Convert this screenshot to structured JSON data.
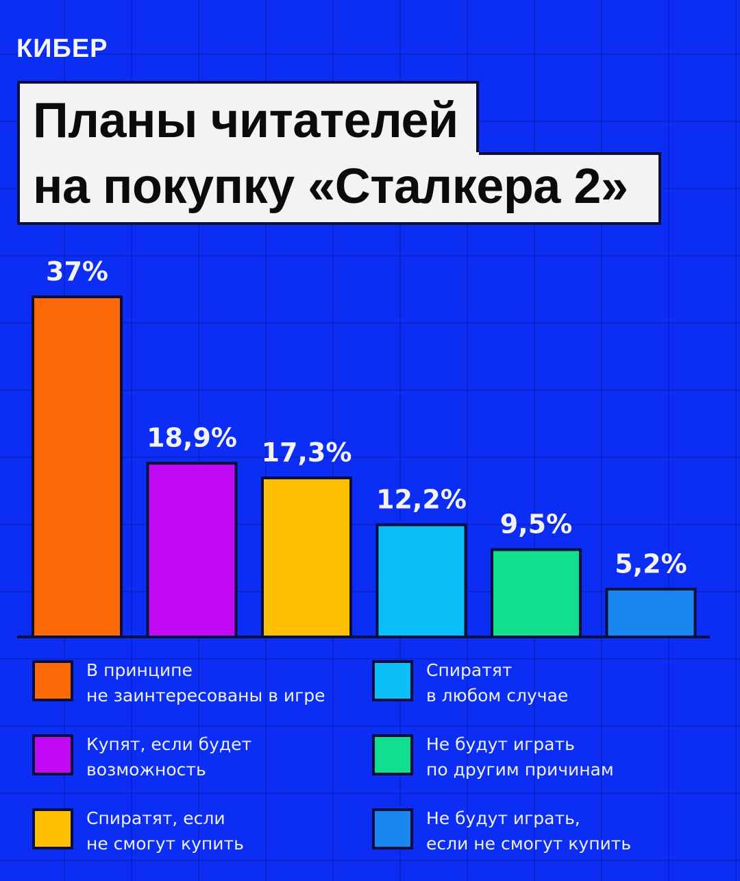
{
  "logo": "КИБЕР",
  "title": {
    "line1": "Планы читателей",
    "line2": "на покупку «Сталкера 2»"
  },
  "colors": {
    "background": "#0b2df4",
    "bar_outline": "#0a0f3a",
    "label": "#f2f2f2"
  },
  "chart_data": {
    "type": "bar",
    "title": "Планы читателей на покупку «Сталкера 2»",
    "xlabel": "",
    "ylabel": "",
    "ylim": [
      0,
      37
    ],
    "grid": false,
    "legend_position": "bottom",
    "categories": [
      "В принципе не заинтересованы в игре",
      "Купят, если будет возможность",
      "Спиратят, если не смогут купить",
      "Спиратят в любом случае",
      "Не будут играть по другим причинам",
      "Не будут играть, если не смогут купить"
    ],
    "values": [
      37,
      18.9,
      17.3,
      12.2,
      9.5,
      5.2
    ],
    "value_labels": [
      "37%",
      "18,9%",
      "17,3%",
      "12,2%",
      "9,5%",
      "5,2%"
    ],
    "bar_colors": [
      "#ff6a08",
      "#c209f6",
      "#ffc004",
      "#0dbff8",
      "#12df8e",
      "#1a86f0"
    ]
  },
  "legend": [
    {
      "line1": "В принципе",
      "line2": "не заинтересованы в игре",
      "color": "#ff6a08"
    },
    {
      "line1": "Купят, если будет",
      "line2": "возможность",
      "color": "#c209f6"
    },
    {
      "line1": "Спиратят, если",
      "line2": "не смогут купить",
      "color": "#ffc004"
    },
    {
      "line1": "Спиратят",
      "line2": "в любом случае",
      "color": "#0dbff8"
    },
    {
      "line1": "Не будут играть",
      "line2": "по другим причинам",
      "color": "#12df8e"
    },
    {
      "line1": "Не будут играть,",
      "line2": "если не смогут купить",
      "color": "#1a86f0"
    }
  ]
}
